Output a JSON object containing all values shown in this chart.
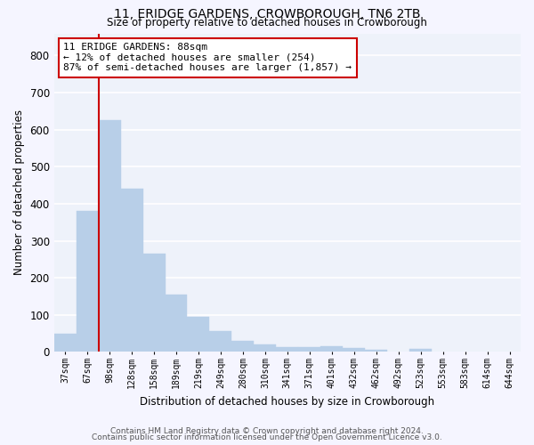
{
  "title": "11, ERIDGE GARDENS, CROWBOROUGH, TN6 2TB",
  "subtitle": "Size of property relative to detached houses in Crowborough",
  "xlabel": "Distribution of detached houses by size in Crowborough",
  "ylabel": "Number of detached properties",
  "categories": [
    "37sqm",
    "67sqm",
    "98sqm",
    "128sqm",
    "158sqm",
    "189sqm",
    "219sqm",
    "249sqm",
    "280sqm",
    "310sqm",
    "341sqm",
    "371sqm",
    "401sqm",
    "432sqm",
    "462sqm",
    "492sqm",
    "523sqm",
    "553sqm",
    "583sqm",
    "614sqm",
    "644sqm"
  ],
  "values": [
    50,
    380,
    625,
    440,
    265,
    155,
    95,
    55,
    30,
    20,
    12,
    12,
    15,
    10,
    5,
    0,
    8,
    0,
    0,
    0,
    0
  ],
  "bar_color": "#b8cfe8",
  "bar_edge_color": "#b8cfe8",
  "background_color": "#eef2fa",
  "grid_color": "#ffffff",
  "vline_color": "#cc0000",
  "annotation_text": "11 ERIDGE GARDENS: 88sqm\n← 12% of detached houses are smaller (254)\n87% of semi-detached houses are larger (1,857) →",
  "annotation_box_color": "#ffffff",
  "annotation_box_edge": "#cc0000",
  "ylim": [
    0,
    860
  ],
  "yticks": [
    0,
    100,
    200,
    300,
    400,
    500,
    600,
    700,
    800
  ],
  "footer_line1": "Contains HM Land Registry data © Crown copyright and database right 2024.",
  "footer_line2": "Contains public sector information licensed under the Open Government Licence v3.0."
}
